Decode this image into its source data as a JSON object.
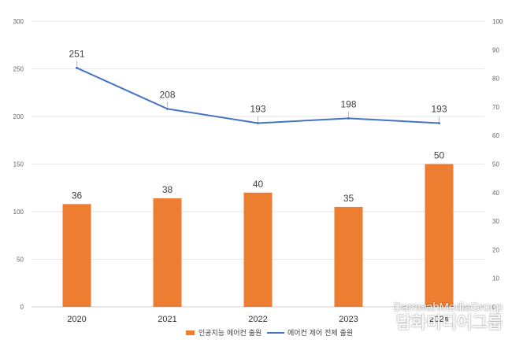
{
  "chart_data": {
    "type": "bar",
    "title": "",
    "categories": [
      "2020",
      "2021",
      "2022",
      "2023",
      "2024"
    ],
    "series": [
      {
        "name": "인공지능 에어컨 출원",
        "type": "bar",
        "axis": "right",
        "values": [
          36,
          38,
          40,
          35,
          50
        ],
        "color": "#ED7D31"
      },
      {
        "name": "에어컨 제어 전체 출원",
        "type": "line",
        "axis": "left",
        "values": [
          251,
          208,
          193,
          198,
          193
        ],
        "color": "#4472C4"
      }
    ],
    "y_left": {
      "min": 0,
      "max": 300,
      "ticks": [
        0,
        50,
        100,
        150,
        200,
        250,
        300
      ]
    },
    "y_right": {
      "min": 0,
      "max": 100,
      "ticks": [
        0,
        10,
        20,
        30,
        40,
        50,
        60,
        70,
        80,
        90,
        100
      ]
    },
    "grid": true,
    "legend_position": "bottom"
  },
  "watermark": {
    "line1": "DamwahMediaGroup",
    "line2": "담화미디어그룹"
  }
}
